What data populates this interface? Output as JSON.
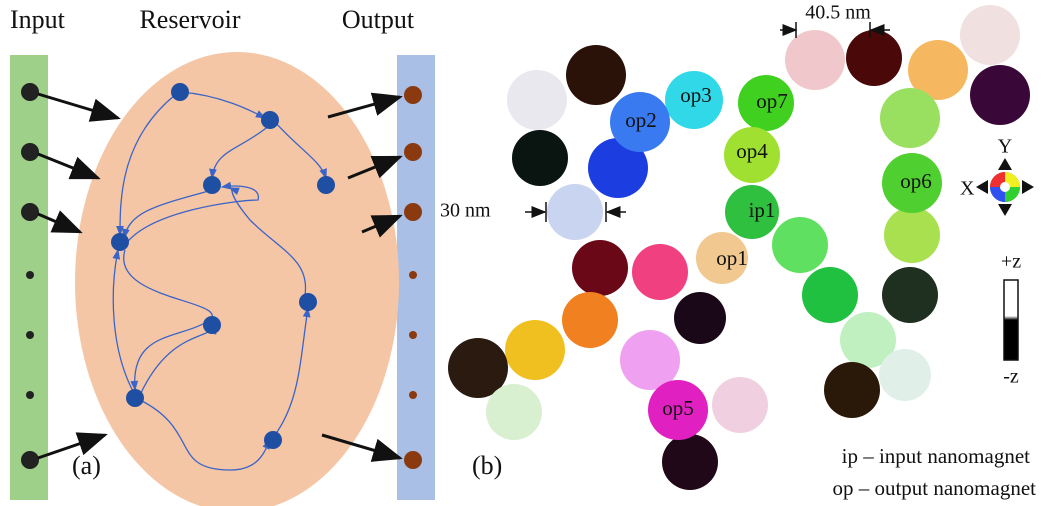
{
  "panel_a": {
    "labels": {
      "input": "Input",
      "reservoir": "Reservoir",
      "output": "Output"
    },
    "tag": "(a)"
  },
  "panel_b": {
    "tag": "(b)",
    "dimensions": [
      "40.5 nm",
      "30 nm"
    ],
    "magnets": [
      {
        "label": "op3"
      },
      {
        "label": "op2"
      },
      {
        "label": "op7"
      },
      {
        "label": "op4"
      },
      {
        "label": "ip1"
      },
      {
        "label": "op6"
      },
      {
        "label": "op1"
      },
      {
        "label": "op5"
      }
    ],
    "axes": {
      "y": "Y",
      "x": "X"
    },
    "scale": {
      "top": "+z",
      "bottom": "-z"
    },
    "legend": [
      "ip – input nanomagnet",
      "op – output nanomagnet"
    ]
  }
}
